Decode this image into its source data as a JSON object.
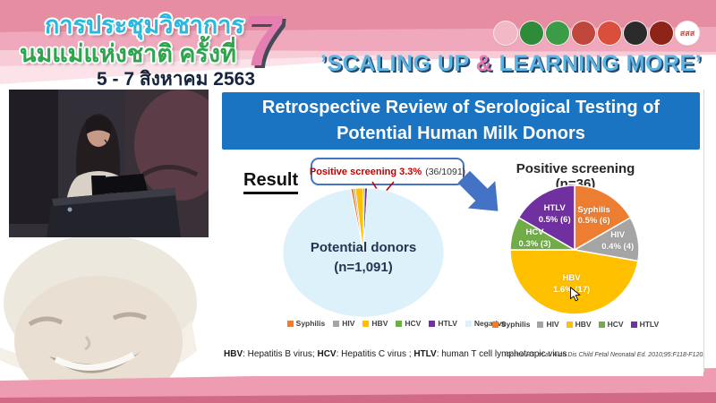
{
  "header": {
    "conference_title_line1": "การประชุมวิชาการ",
    "conference_title_line2": "นมแม่แห่งชาติ ครั้งที่",
    "conference_number": "7",
    "date_line": "5 - 7 สิงหาคม 2563",
    "tagline_open": "’SCALING UP ",
    "tagline_amp": "&",
    "tagline_close": " LEARNING MORE’",
    "logos": [
      {
        "name": "breastfeeding-foundation-logo",
        "color": "#F2B8C6",
        "text": ""
      },
      {
        "name": "ministry-health-green-logo",
        "color": "#2E8B3A",
        "text": ""
      },
      {
        "name": "health-department-green-logo",
        "color": "#3A9C46",
        "text": ""
      },
      {
        "name": "red-university-emblem-logo",
        "color": "#C0453A",
        "text": ""
      },
      {
        "name": "royal-college-emblem-logo",
        "color": "#D94F3C",
        "text": ""
      },
      {
        "name": "pediatric-society-logo",
        "color": "#2B2B2B",
        "text": ""
      },
      {
        "name": "nursing-college-logo",
        "color": "#8E2318",
        "text": ""
      },
      {
        "name": "thaihealth-sss-logo",
        "color": "#FFFFFF",
        "text": "สสส",
        "text_color": "#E04438"
      }
    ]
  },
  "slide": {
    "title_line1": "Retrospective Review of Serological Testing of",
    "title_line2": "Potential Human Milk Donors",
    "result_label": "Result",
    "callout_highlight": "Positive screening 3.3%",
    "callout_detail": "(36/1091)",
    "footnote": {
      "parts": [
        {
          "abbr": "HBV",
          "rest": ": Hepatitis B virus; "
        },
        {
          "abbr": "HCV",
          "rest": ": Hepatitis C virus ; "
        },
        {
          "abbr": "HTLV",
          "rest": ": human T cell lymphotropic virus"
        }
      ]
    },
    "citation": "Cohen RS, et al. Arch Dis Child Fetal Neonatal Ed. 2010;95:F118-F120."
  },
  "chart_data": [
    {
      "type": "pie",
      "name": "potential-donors-pie",
      "center_label_line1": "Potential donors",
      "center_label_line2": "(n=1,091)",
      "total": 1091,
      "start_angle": -9,
      "legend_position": "bottom",
      "slices": [
        {
          "label": "Syphilis",
          "value": 6,
          "color": "#ED7D31"
        },
        {
          "label": "HIV",
          "value": 4,
          "color": "#A5A5A5"
        },
        {
          "label": "HBV",
          "value": 17,
          "color": "#FFC000"
        },
        {
          "label": "HCV",
          "value": 3,
          "color": "#70AD47"
        },
        {
          "label": "HTLV",
          "value": 6,
          "color": "#7030A0"
        },
        {
          "label": "Negative",
          "value": 1055,
          "color": "#DDF1FB"
        }
      ]
    },
    {
      "type": "pie",
      "name": "positive-screening-pie",
      "title": "Positive screening (n=36)",
      "total": 36,
      "start_angle": 0,
      "legend_position": "bottom",
      "slices": [
        {
          "label": "Syphilis",
          "value": 6,
          "pct_label": "0.5% (6)",
          "color": "#ED7D31",
          "label_r": 0.6
        },
        {
          "label": "HIV",
          "value": 4,
          "pct_label": "0.4% (4)",
          "color": "#A5A5A5",
          "label_r": 0.68
        },
        {
          "label": "HBV",
          "value": 17,
          "pct_label": "1.6% (17)",
          "color": "#FFC000",
          "label_r": 0.55
        },
        {
          "label": "HCV",
          "value": 3,
          "pct_label": "0.3% (3)",
          "color": "#70AD47",
          "label_r": 0.64
        },
        {
          "label": "HTLV",
          "value": 6,
          "pct_label": "0.5% (6)",
          "color": "#7030A0",
          "label_r": 0.62
        }
      ]
    }
  ],
  "colors": {
    "slide_title_bar_blue": "#1B74C1",
    "callout_red": "#C00000",
    "callout_border_blue": "#4472C4",
    "arrow_blue": "#4472C4",
    "header_pink": "#E78DA2",
    "tagline_blue": "#5FB3E2",
    "number7_pink": "#E57FB2",
    "bottom_band_pink": "#EE9CB2"
  }
}
